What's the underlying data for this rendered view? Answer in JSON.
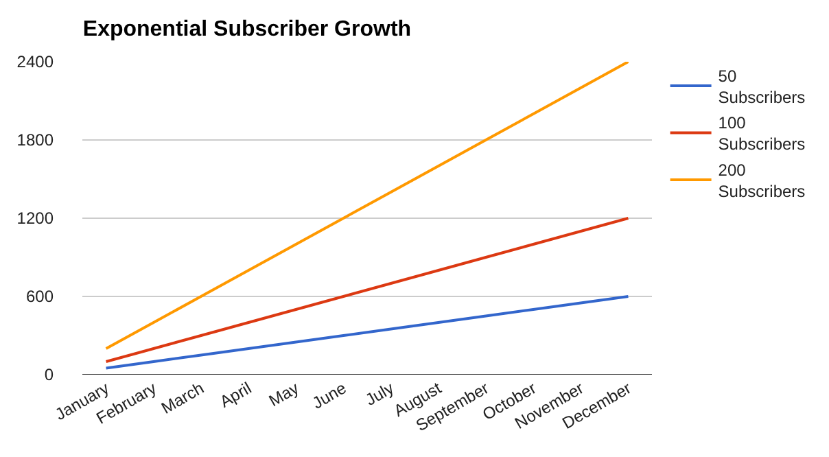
{
  "chart_data": {
    "type": "line",
    "title": "Exponential Subscriber Growth",
    "categories": [
      "January",
      "February",
      "March",
      "April",
      "May",
      "June",
      "July",
      "August",
      "September",
      "October",
      "November",
      "December"
    ],
    "series": [
      {
        "name": "50 Subscribers",
        "color": "#3366cc",
        "values": [
          50,
          100,
          150,
          200,
          250,
          300,
          350,
          400,
          450,
          500,
          550,
          600
        ]
      },
      {
        "name": "100 Subscribers",
        "color": "#dc3912",
        "values": [
          100,
          200,
          300,
          400,
          500,
          600,
          700,
          800,
          900,
          1000,
          1100,
          1200
        ]
      },
      {
        "name": "200 Subscribers",
        "color": "#ff9900",
        "values": [
          200,
          400,
          600,
          800,
          1000,
          1200,
          1400,
          1600,
          1800,
          2000,
          2200,
          2400
        ]
      }
    ],
    "ylim": [
      0,
      2400
    ],
    "yticks": [
      0,
      600,
      1200,
      1800,
      2400
    ],
    "grid": "y",
    "legend": "right",
    "marker": "none",
    "line_style": "solid"
  }
}
